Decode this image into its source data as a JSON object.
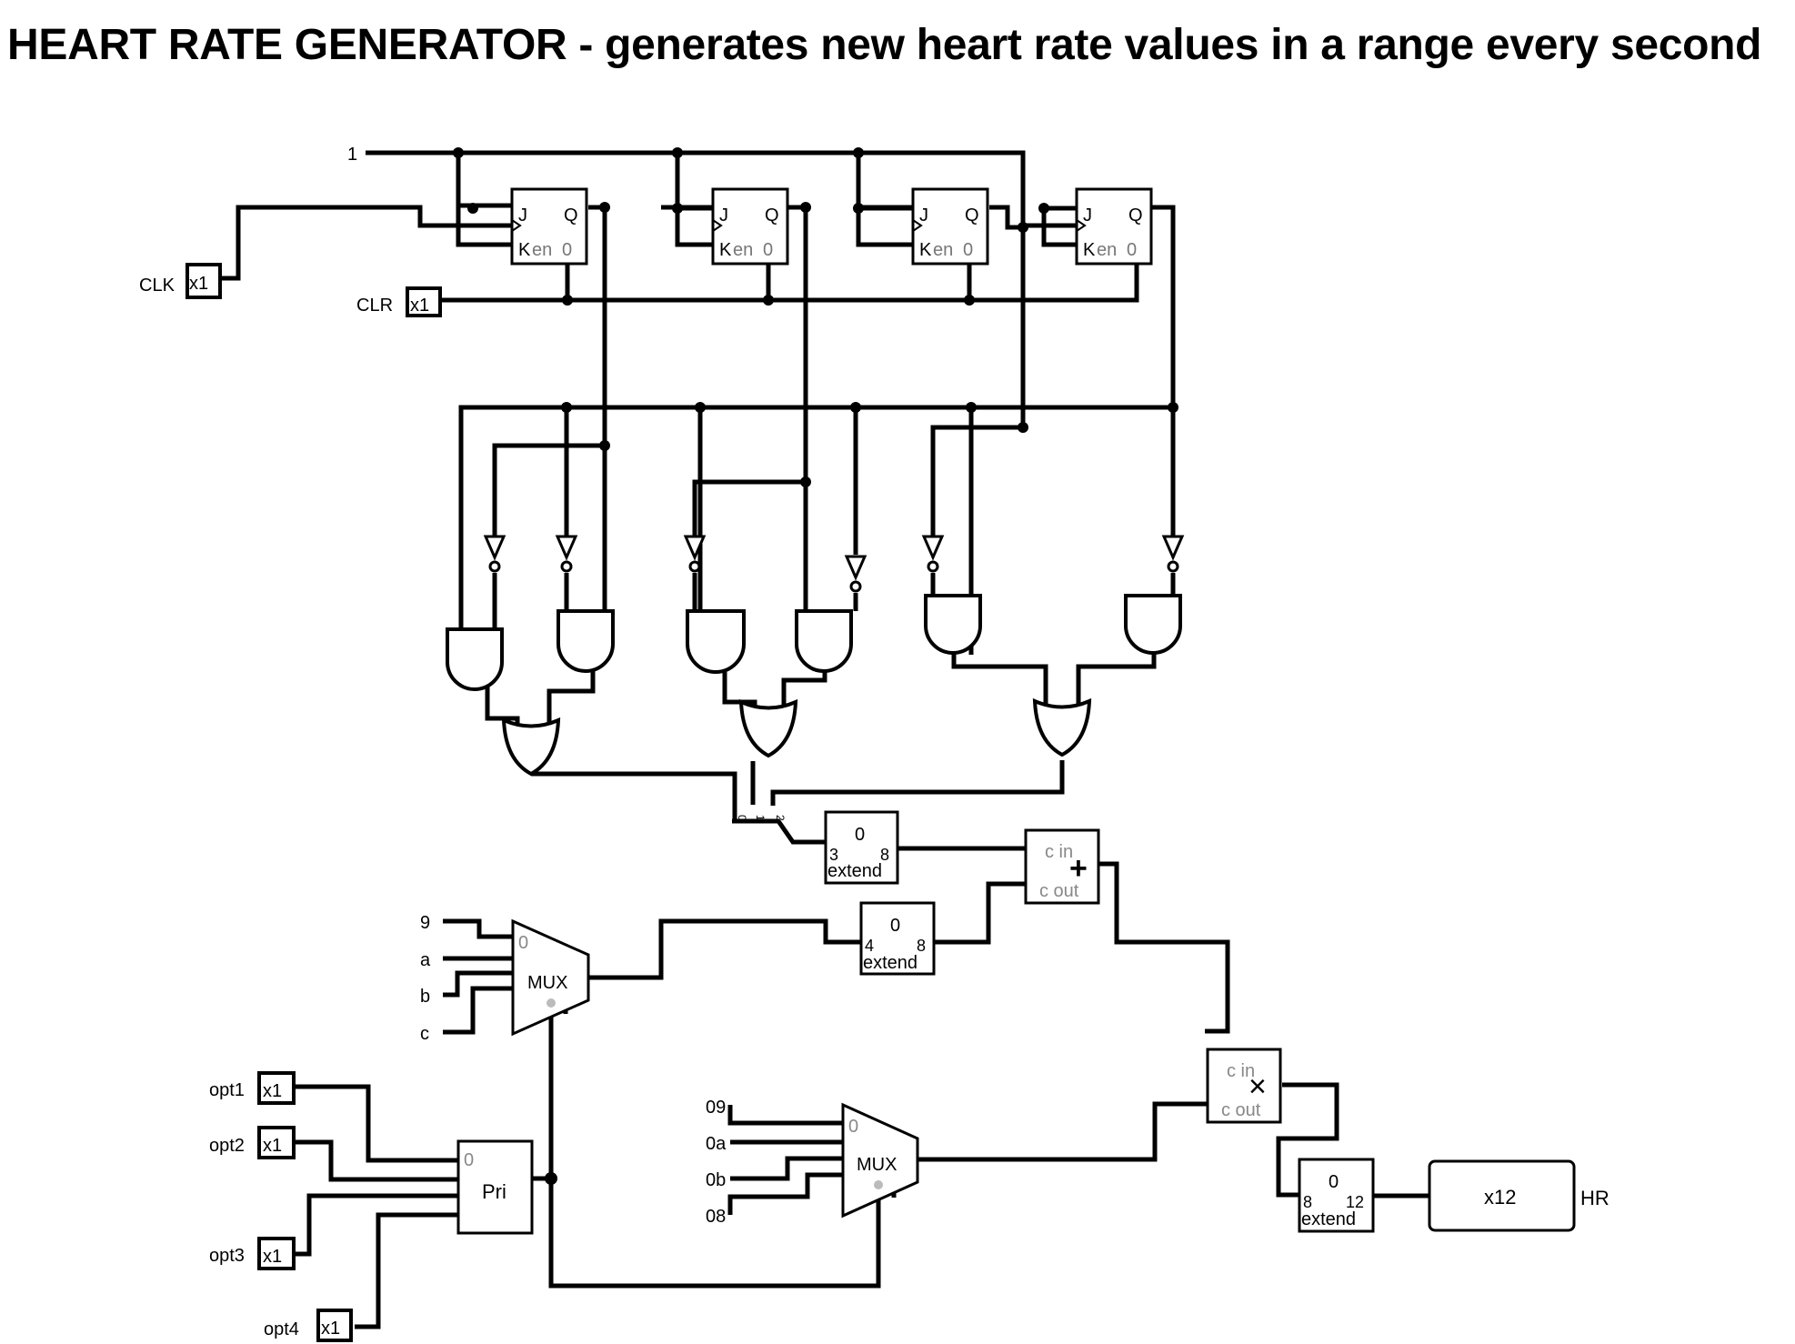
{
  "title": "HEART RATE GENERATOR - generates new heart rate values in a range every second",
  "inputs": {
    "clk": "CLK",
    "clr": "CLR",
    "const_one": "1",
    "opt1": "opt1",
    "opt2": "opt2",
    "opt3": "opt3",
    "opt4": "opt4"
  },
  "pin_width": "x1",
  "flipflop": {
    "j": "J",
    "k": "K",
    "q": "Q",
    "en": "en",
    "zero": "0"
  },
  "splitter_bits": [
    "0",
    "1",
    "2"
  ],
  "extend_top": {
    "value": "0",
    "in_width": "3",
    "out_width": "8",
    "label": "extend"
  },
  "extend_mid": {
    "value": "0",
    "in_width": "4",
    "out_width": "8",
    "label": "extend"
  },
  "extend_out": {
    "value": "0",
    "in_width": "8",
    "out_width": "12",
    "label": "extend"
  },
  "adder": {
    "cin": "c in",
    "cout": "c out",
    "symbol": "+"
  },
  "multiplier": {
    "cin": "c in",
    "cout": "c out",
    "symbol": "×"
  },
  "mux1": {
    "label": "MUX",
    "zero": "0",
    "constants": [
      "9",
      "a",
      "b",
      "c"
    ]
  },
  "mux2": {
    "label": "MUX",
    "zero": "0",
    "constants": [
      "09",
      "0a",
      "0b",
      "08"
    ]
  },
  "priority": {
    "label": "Pri",
    "zero": "0"
  },
  "output": {
    "width": "x12",
    "label": "HR"
  }
}
